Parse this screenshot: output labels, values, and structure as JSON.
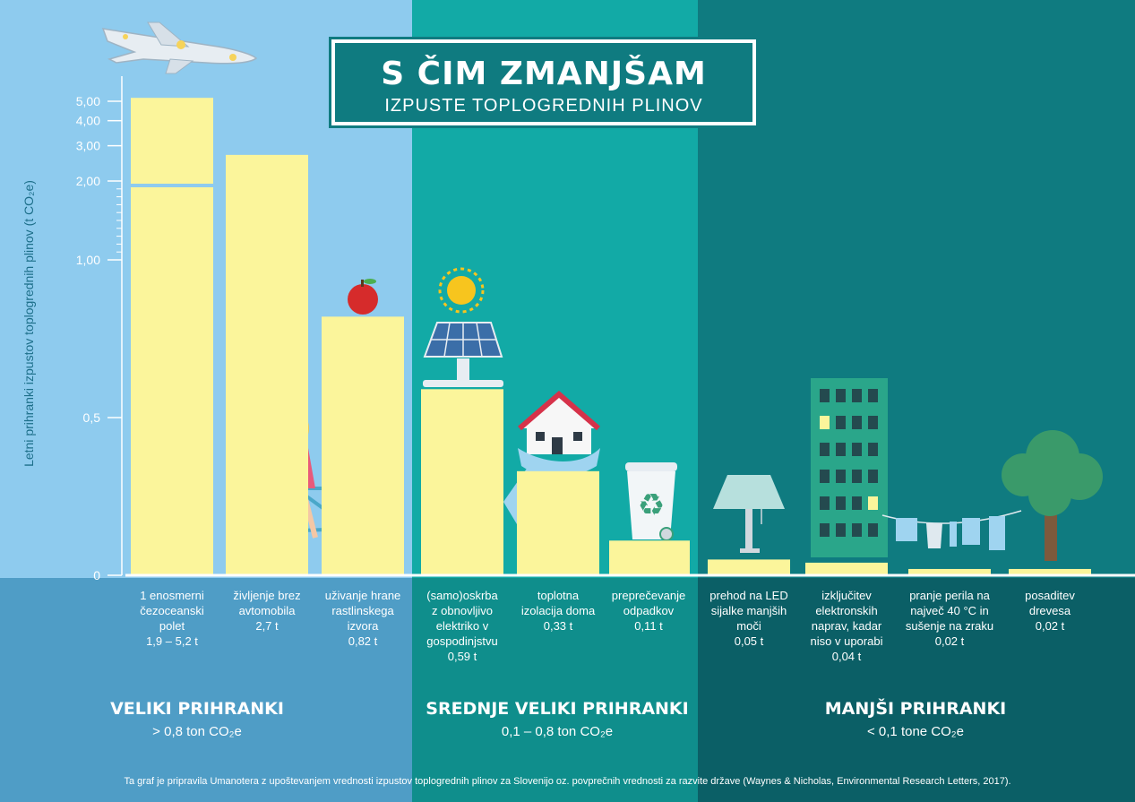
{
  "title": {
    "main": "S ČIM ZMANJŠAM",
    "sub": "IZPUSTE TOPLOGREDNIH PLINOV"
  },
  "colors": {
    "panel_light": "#8ecbee",
    "panel_mid": "#12aaa6",
    "panel_dark": "#0f7b80",
    "band_light": "#4f9dc6",
    "band_mid": "#0f8e8c",
    "band_dark": "#0b5f66",
    "bar": "#fbf59b"
  },
  "chart_data": {
    "type": "bar",
    "ylabel": "Letni prihranki izpustov toplogrednih plinov (t CO₂e)",
    "yscale": "broken (linear 0–1, compressed 1–2, log 2–5)",
    "ytick_labels": [
      "0",
      "0,5",
      "1,00",
      "2,00",
      "3,00",
      "4,00",
      "5,00"
    ],
    "ytick_values": [
      0,
      0.5,
      1,
      2,
      3,
      4,
      5
    ],
    "categories": [
      [
        "1 enosmerni",
        "čezoceanski",
        "polet",
        "1,9 – 5,2 t"
      ],
      [
        "življenje brez",
        "avtomobila",
        "2,7 t"
      ],
      [
        "uživanje hrane",
        "rastlinskega",
        "izvora",
        "0,82 t"
      ],
      [
        "(samo)oskrba",
        "z obnovljivo",
        "elektriko v",
        "gospodinjstvu",
        "0,59 t"
      ],
      [
        "toplotna",
        "izolacija doma",
        "0,33 t"
      ],
      [
        "preprečevanje",
        "odpadkov",
        "0,11 t"
      ],
      [
        "prehod na LED",
        "sijalke manjših",
        "moči",
        "0,05 t"
      ],
      [
        "izključitev",
        "elektronskih",
        "naprav, kadar",
        "niso v uporabi",
        "0,04 t"
      ],
      [
        "pranje perila na",
        "največ 40 °C in",
        "sušenje na zraku",
        "0,02 t"
      ],
      [
        "posaditev",
        "drevesa",
        "0,02 t"
      ]
    ],
    "values": [
      5.2,
      2.7,
      0.82,
      0.59,
      0.33,
      0.11,
      0.05,
      0.04,
      0.02,
      0.02
    ],
    "ranges": [
      [
        1.9,
        5.2
      ],
      null,
      null,
      null,
      null,
      null,
      null,
      null,
      null,
      null
    ],
    "groups": [
      {
        "title": "VELIKI PRIHRANKI",
        "range": "> 0,8 ton CO₂e"
      },
      {
        "title": "SREDNJE VELIKI PRIHRANKI",
        "range": "0,1 – 0,8 ton CO₂e"
      },
      {
        "title": "MANJŠI PRIHRANKI",
        "range": "< 0,1 tone CO₂e"
      }
    ]
  },
  "footer": "Ta graf je pripravila Umanotera z upoštevanjem vrednosti izpustov toplogrednih plinov za Slovenijo oz. povprečnih vrednosti za razvite države (Waynes & Nicholas, Environmental Research Letters, 2017).",
  "icons": [
    "airplane-icon",
    "bicycle-icon",
    "apple-icon",
    "sun-icon",
    "solar-panel-icon",
    "house-icon",
    "scarf-icon",
    "recycle-bin-icon",
    "lamp-icon",
    "building-icon",
    "clothesline-icon",
    "tree-icon"
  ]
}
